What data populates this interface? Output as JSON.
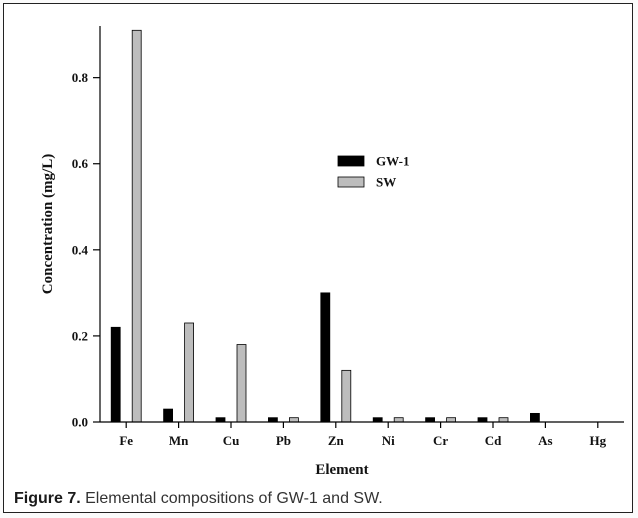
{
  "chart_data": {
    "type": "bar",
    "categories": [
      "Fe",
      "Mn",
      "Cu",
      "Pb",
      "Zn",
      "Ni",
      "Cr",
      "Cd",
      "As",
      "Hg"
    ],
    "series": [
      {
        "name": "GW-1",
        "color": "#000000",
        "values": [
          0.22,
          0.03,
          0.01,
          0.01,
          0.3,
          0.01,
          0.01,
          0.01,
          0.02,
          0.0
        ]
      },
      {
        "name": "SW",
        "color": "#bdbdbd",
        "values": [
          0.91,
          0.23,
          0.18,
          0.01,
          0.12,
          0.01,
          0.01,
          0.01,
          0.0,
          0.0
        ]
      }
    ],
    "xlabel": "Element",
    "ylabel": "Concentration (mg/L)",
    "ylim": [
      0,
      0.92
    ],
    "yticks": [
      0.0,
      0.2,
      0.4,
      0.6,
      0.8
    ],
    "ytick_labels": [
      "0.0",
      "0.2",
      "0.4",
      "0.6",
      "0.8"
    ],
    "legend_position": "center-right",
    "grid": false
  },
  "caption": {
    "label": "Figure 7.",
    "text": " Elemental compositions of GW-1 and SW."
  }
}
